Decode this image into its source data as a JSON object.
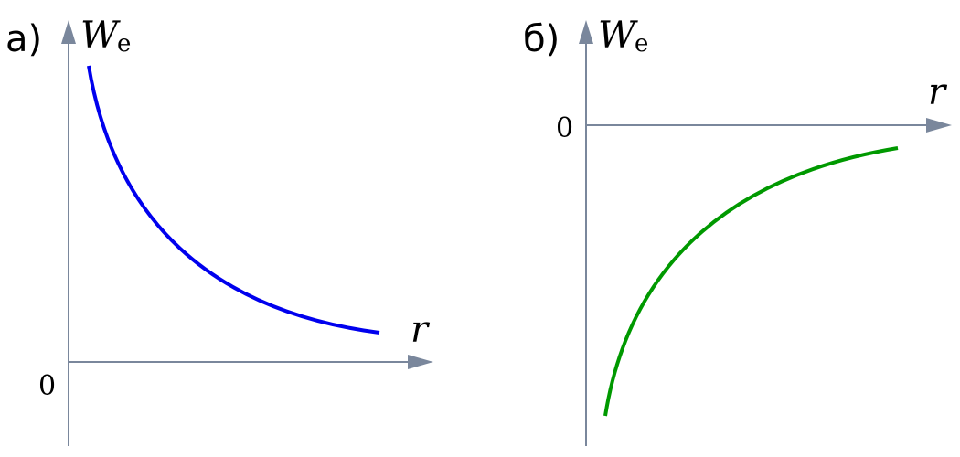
{
  "panels": [
    {
      "label": "а)",
      "y_axis": {
        "symbol": "W",
        "subscript": "e"
      },
      "x_axis": "r",
      "origin": "0"
    },
    {
      "label": "б)",
      "y_axis": {
        "symbol": "W",
        "subscript": "e"
      },
      "x_axis": "r",
      "origin": "0"
    }
  ]
}
